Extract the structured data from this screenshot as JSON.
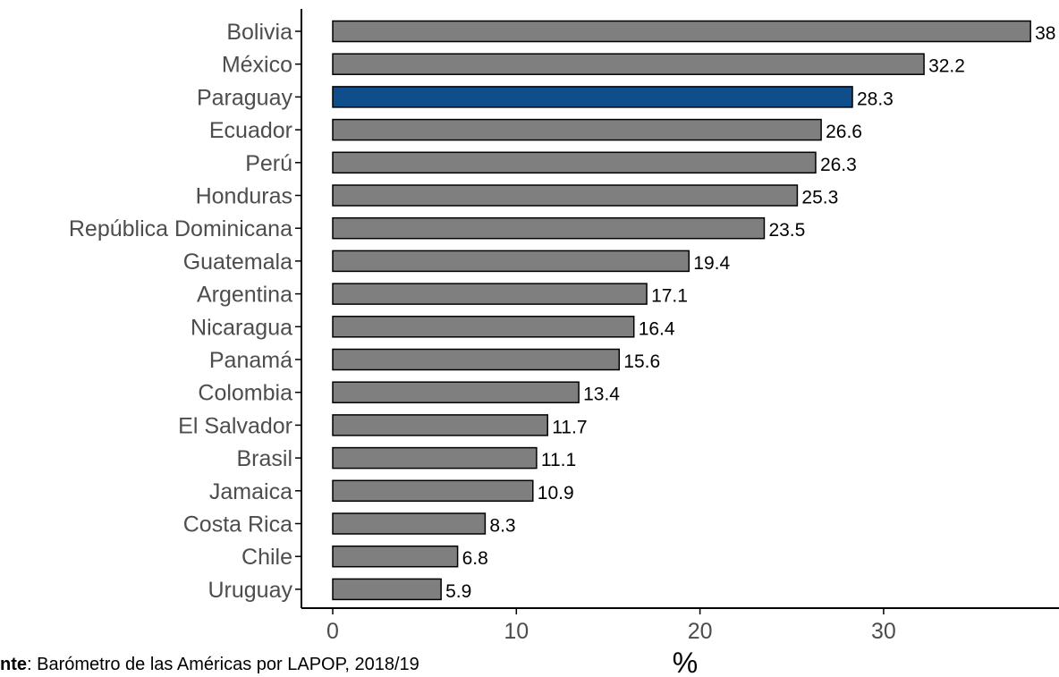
{
  "chart_data": {
    "type": "bar",
    "orientation": "horizontal",
    "title": "",
    "xlabel": "%",
    "ylabel": "",
    "xlim": [
      0,
      38
    ],
    "x_ticks": [
      0,
      10,
      20,
      30
    ],
    "grid": false,
    "legend": "none",
    "categories": [
      "Bolivia",
      "México",
      "Paraguay",
      "Ecuador",
      "Perú",
      "Honduras",
      "República Dominicana",
      "Guatemala",
      "Argentina",
      "Nicaragua",
      "Panamá",
      "Colombia",
      "El Salvador",
      "Brasil",
      "Jamaica",
      "Costa Rica",
      "Chile",
      "Uruguay"
    ],
    "values": [
      38,
      32.2,
      28.3,
      26.6,
      26.3,
      25.3,
      23.5,
      19.4,
      17.1,
      16.4,
      15.6,
      13.4,
      11.7,
      11.1,
      10.9,
      8.3,
      6.8,
      5.9
    ],
    "value_labels": [
      "38",
      "32.2",
      "28.3",
      "26.6",
      "26.3",
      "25.3",
      "23.5",
      "19.4",
      "17.1",
      "16.4",
      "15.6",
      "13.4",
      "11.7",
      "11.1",
      "10.9",
      "8.3",
      "6.8",
      "5.9"
    ],
    "highlight_category": "Paraguay",
    "colors": {
      "bar": "#7f7f7f",
      "highlight": "#104e8b",
      "bar_outline": "#000000",
      "axis": "#000000",
      "tick_label": "#4d4d4d"
    }
  },
  "source_note": {
    "lead": "nte",
    "text": ": Barómetro de las Américas por LAPOP, 2018/19"
  }
}
